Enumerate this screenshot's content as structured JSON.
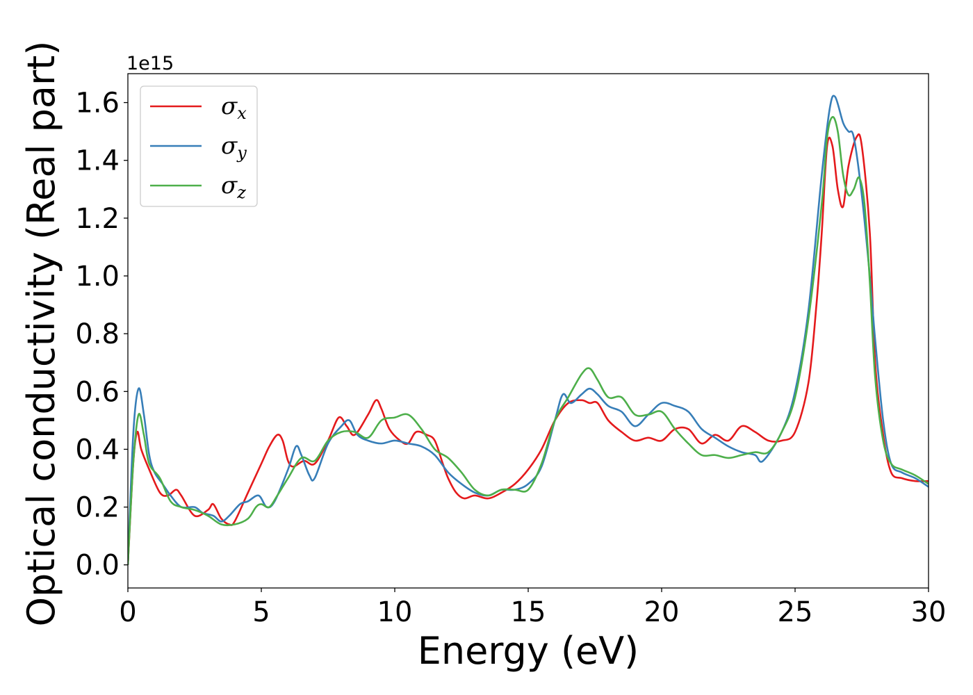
{
  "chart_data": {
    "type": "line",
    "title": "",
    "xlabel": "Energy (eV)",
    "ylabel": "Optical conductivity (Real part)",
    "y_offset_label": "1e15",
    "xlim": [
      0,
      30
    ],
    "ylim": [
      -0.08,
      1.7
    ],
    "x_ticks": [
      0,
      5,
      10,
      15,
      20,
      25,
      30
    ],
    "x_tick_labels": [
      "0",
      "5",
      "10",
      "15",
      "20",
      "25",
      "30"
    ],
    "y_ticks": [
      0.0,
      0.2,
      0.4,
      0.6,
      0.8,
      1.0,
      1.2,
      1.4,
      1.6
    ],
    "y_tick_labels": [
      "0.0",
      "0.2",
      "0.4",
      "0.6",
      "0.8",
      "1.0",
      "1.2",
      "1.4",
      "1.6"
    ],
    "grid": false,
    "legend_position": "top-left",
    "series": [
      {
        "name": "σx",
        "symbol": "σ",
        "subscript": "x",
        "color": "#e41a1c",
        "x": [
          0,
          0.2,
          0.35,
          0.5,
          0.8,
          1.2,
          1.5,
          1.8,
          2.0,
          2.5,
          3.0,
          3.2,
          3.5,
          3.8,
          4.0,
          4.5,
          5.0,
          5.3,
          5.6,
          5.8,
          6.0,
          6.2,
          6.6,
          7.0,
          7.5,
          7.9,
          8.2,
          8.5,
          9.0,
          9.3,
          9.5,
          9.8,
          10.2,
          10.5,
          10.8,
          11.2,
          11.5,
          11.8,
          12.0,
          12.3,
          12.6,
          13.0,
          13.5,
          14.0,
          14.5,
          15.0,
          15.5,
          16.0,
          16.5,
          17.0,
          17.3,
          17.6,
          18.0,
          18.5,
          19.0,
          19.5,
          20.0,
          20.5,
          21.0,
          21.5,
          22.0,
          22.5,
          23.0,
          23.5,
          24.0,
          24.5,
          25.0,
          25.5,
          25.8,
          26.0,
          26.2,
          26.4,
          26.6,
          26.8,
          27.0,
          27.3,
          27.5,
          27.8,
          28.0,
          28.3,
          28.6,
          29.0,
          29.5,
          30.0
        ],
        "y": [
          0.0,
          0.35,
          0.46,
          0.4,
          0.33,
          0.25,
          0.24,
          0.26,
          0.24,
          0.17,
          0.19,
          0.21,
          0.16,
          0.14,
          0.15,
          0.25,
          0.35,
          0.41,
          0.45,
          0.43,
          0.36,
          0.34,
          0.36,
          0.35,
          0.43,
          0.51,
          0.48,
          0.45,
          0.52,
          0.57,
          0.54,
          0.47,
          0.43,
          0.42,
          0.46,
          0.45,
          0.43,
          0.35,
          0.3,
          0.25,
          0.23,
          0.24,
          0.23,
          0.25,
          0.28,
          0.33,
          0.4,
          0.5,
          0.56,
          0.57,
          0.56,
          0.56,
          0.5,
          0.46,
          0.43,
          0.44,
          0.43,
          0.47,
          0.47,
          0.42,
          0.45,
          0.43,
          0.48,
          0.46,
          0.43,
          0.43,
          0.46,
          0.63,
          0.9,
          1.15,
          1.45,
          1.45,
          1.3,
          1.24,
          1.38,
          1.48,
          1.45,
          1.15,
          0.7,
          0.45,
          0.32,
          0.3,
          0.29,
          0.29
        ]
      },
      {
        "name": "σy",
        "symbol": "σ",
        "subscript": "y",
        "color": "#377eb8",
        "x": [
          0,
          0.2,
          0.4,
          0.6,
          0.8,
          1.0,
          1.3,
          1.6,
          2.0,
          2.5,
          2.8,
          3.2,
          3.5,
          3.8,
          4.2,
          4.5,
          4.9,
          5.2,
          5.5,
          6.0,
          6.3,
          6.5,
          6.8,
          7.0,
          7.5,
          8.0,
          8.3,
          8.6,
          9.0,
          9.5,
          10.0,
          10.5,
          11.0,
          11.5,
          12.0,
          12.5,
          13.0,
          13.5,
          14.0,
          14.5,
          15.0,
          15.5,
          16.0,
          16.3,
          16.6,
          17.0,
          17.3,
          17.6,
          18.0,
          18.5,
          19.0,
          19.5,
          20.0,
          20.5,
          21.0,
          21.5,
          22.0,
          22.5,
          23.0,
          23.5,
          23.8,
          24.5,
          25.0,
          25.5,
          26.0,
          26.3,
          26.5,
          26.8,
          27.0,
          27.2,
          27.5,
          27.8,
          28.0,
          28.3,
          28.6,
          29.0,
          29.5,
          30.0
        ],
        "y": [
          0.0,
          0.45,
          0.61,
          0.52,
          0.38,
          0.32,
          0.28,
          0.24,
          0.2,
          0.2,
          0.18,
          0.17,
          0.15,
          0.17,
          0.21,
          0.22,
          0.24,
          0.2,
          0.22,
          0.33,
          0.41,
          0.38,
          0.31,
          0.3,
          0.42,
          0.48,
          0.5,
          0.45,
          0.43,
          0.42,
          0.43,
          0.42,
          0.41,
          0.38,
          0.32,
          0.28,
          0.25,
          0.24,
          0.26,
          0.26,
          0.28,
          0.34,
          0.5,
          0.59,
          0.56,
          0.59,
          0.61,
          0.59,
          0.55,
          0.53,
          0.48,
          0.52,
          0.56,
          0.55,
          0.53,
          0.47,
          0.44,
          0.41,
          0.39,
          0.38,
          0.36,
          0.46,
          0.6,
          0.88,
          1.35,
          1.58,
          1.62,
          1.53,
          1.5,
          1.48,
          1.28,
          1.0,
          0.78,
          0.5,
          0.35,
          0.32,
          0.3,
          0.27
        ]
      },
      {
        "name": "σz",
        "symbol": "σ",
        "subscript": "z",
        "color": "#4daf4a",
        "x": [
          0,
          0.2,
          0.4,
          0.6,
          0.8,
          1.2,
          1.6,
          2.0,
          2.5,
          3.0,
          3.5,
          4.0,
          4.5,
          4.8,
          5.0,
          5.3,
          5.6,
          6.0,
          6.5,
          7.0,
          7.5,
          8.0,
          8.5,
          9.0,
          9.5,
          10.0,
          10.5,
          11.0,
          11.5,
          12.0,
          12.5,
          13.0,
          13.5,
          14.0,
          14.5,
          15.0,
          15.5,
          16.0,
          16.5,
          17.0,
          17.3,
          17.6,
          18.0,
          18.5,
          19.0,
          19.5,
          20.0,
          20.5,
          21.0,
          21.5,
          22.0,
          22.5,
          23.0,
          23.5,
          24.0,
          24.5,
          25.0,
          25.5,
          26.0,
          26.2,
          26.4,
          26.6,
          26.8,
          27.0,
          27.2,
          27.4,
          27.6,
          27.8,
          28.0,
          28.3,
          28.6,
          29.0,
          29.5,
          30.0
        ],
        "y": [
          0.0,
          0.35,
          0.52,
          0.45,
          0.35,
          0.3,
          0.22,
          0.2,
          0.19,
          0.17,
          0.14,
          0.14,
          0.16,
          0.2,
          0.21,
          0.2,
          0.24,
          0.3,
          0.37,
          0.36,
          0.43,
          0.46,
          0.46,
          0.44,
          0.5,
          0.51,
          0.52,
          0.47,
          0.4,
          0.37,
          0.32,
          0.26,
          0.24,
          0.26,
          0.26,
          0.26,
          0.35,
          0.5,
          0.58,
          0.66,
          0.68,
          0.64,
          0.58,
          0.58,
          0.52,
          0.52,
          0.53,
          0.47,
          0.42,
          0.38,
          0.38,
          0.37,
          0.38,
          0.39,
          0.39,
          0.46,
          0.58,
          0.85,
          1.25,
          1.48,
          1.55,
          1.5,
          1.35,
          1.28,
          1.3,
          1.34,
          1.25,
          0.98,
          0.65,
          0.43,
          0.35,
          0.33,
          0.31,
          0.28
        ]
      }
    ]
  }
}
